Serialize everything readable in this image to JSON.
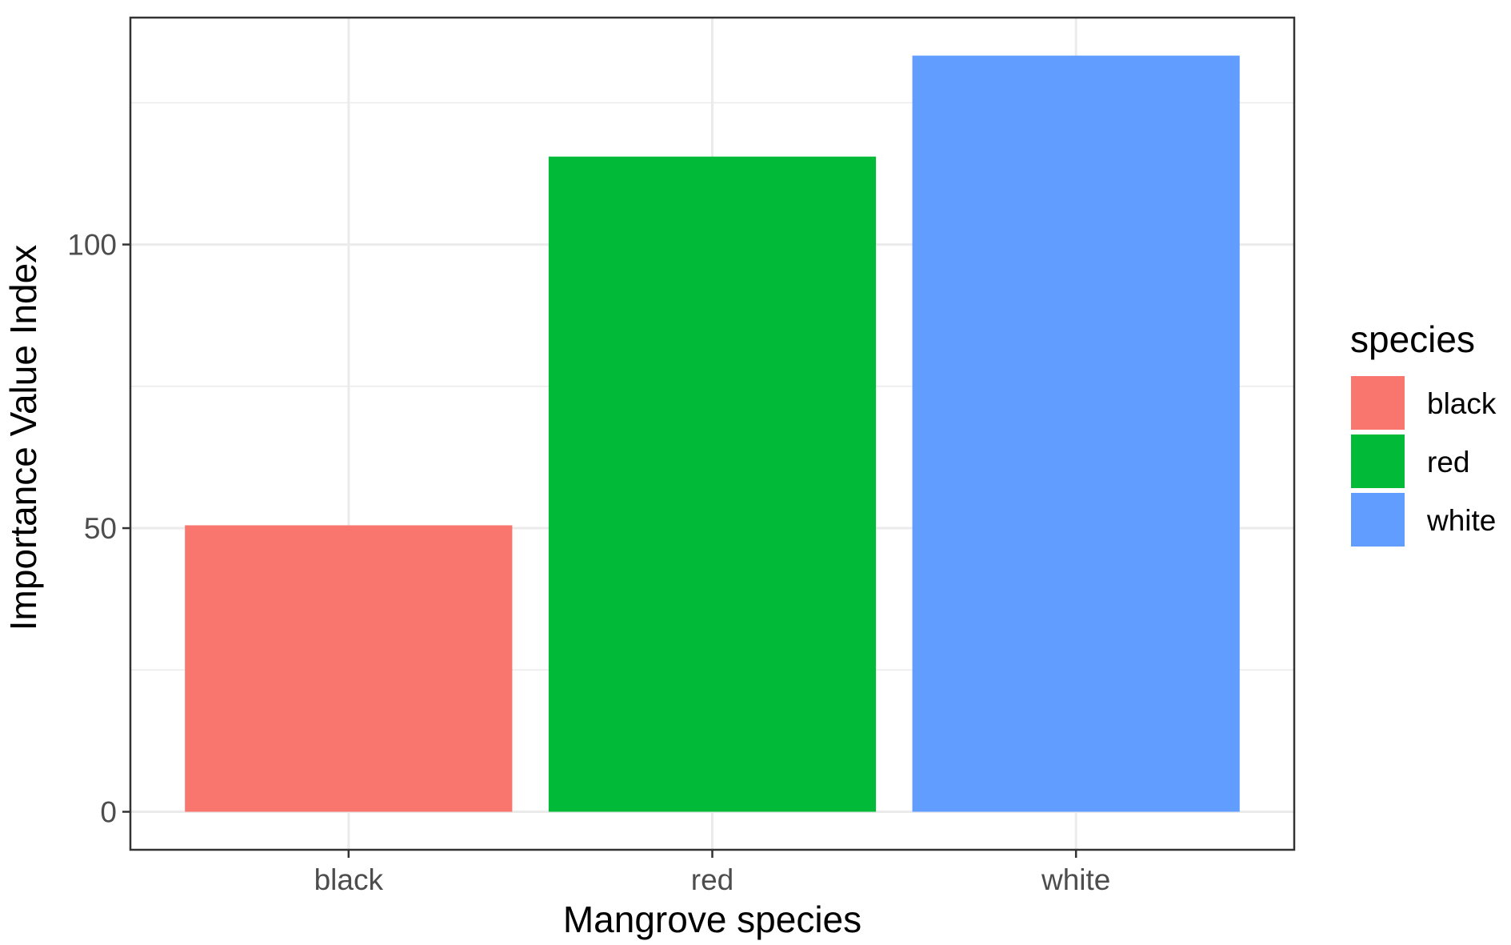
{
  "chart_data": {
    "type": "bar",
    "categories": [
      "black",
      "red",
      "white"
    ],
    "values": [
      50.5,
      115.5,
      133.3
    ],
    "colors": [
      "#F8766D",
      "#00BA38",
      "#619CFF"
    ],
    "xlabel": "Mangrove species",
    "ylabel": "Importance Value Index",
    "ylim": [
      -6.7,
      140.0
    ],
    "y_ticks": [
      0,
      50,
      100
    ],
    "y_tick_labels": [
      "0",
      "50",
      "100"
    ],
    "grid": true,
    "legend": {
      "title": "species",
      "position": "right",
      "items": [
        "black",
        "red",
        "white"
      ]
    }
  }
}
